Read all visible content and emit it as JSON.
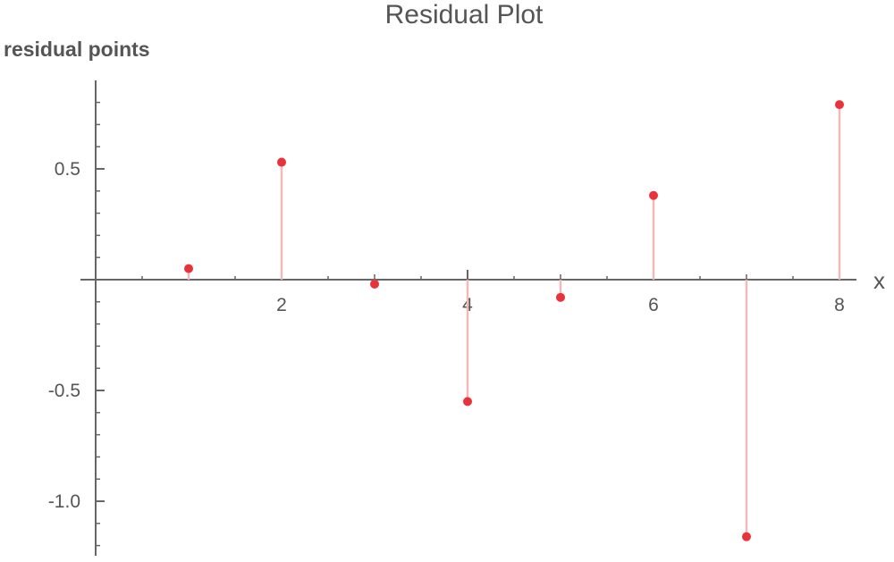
{
  "chart_data": {
    "type": "scatter",
    "title": "Residual Plot",
    "xlabel": "x",
    "ylabel": "residual points",
    "xlim": [
      0,
      8.15
    ],
    "ylim": [
      -1.25,
      0.9
    ],
    "x_ticks": [
      2,
      4,
      6,
      8
    ],
    "x_tick_labels": [
      "2",
      "4",
      "6",
      "8"
    ],
    "y_ticks": [
      0.5,
      -0.5,
      -1.0
    ],
    "y_tick_labels": [
      "0.5",
      "-0.5",
      "-1.0"
    ],
    "grid": false,
    "stems": true,
    "point_color": "#e8333a",
    "stem_color": "#f2b8bc",
    "series": [
      {
        "x": [
          1,
          2,
          3,
          4,
          5,
          6,
          7,
          8
        ],
        "values": [
          0.05,
          0.53,
          -0.02,
          -0.55,
          -0.08,
          0.38,
          -1.16,
          0.79
        ]
      }
    ]
  }
}
